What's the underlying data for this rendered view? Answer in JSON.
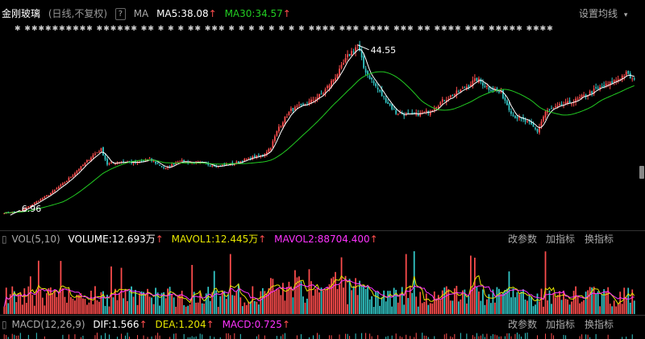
{
  "header": {
    "stock_name": "金刚玻璃",
    "mode": "(日线,不复权)",
    "help": "?",
    "ma_label": "MA",
    "ma5": "MA5:38.08",
    "ma30": "MA30:34.57",
    "settings": "设置均线",
    "settings_caret": "▾"
  },
  "price_panel": {
    "high_label": "44.55",
    "low_label": "6.96",
    "signal_row": "✱ ✱✱✱✱✱✱✱✱✱✱  ✱✱✱✱✱✱ ✱✱ ✱ ✱  ✱ ✱✱ ✱✱✱ ✱ ✱ ✱  ✱  ✱  ✱   ✱   ✱    ✱✱✱✱ ✱✱✱ ✱✱✱✱ ✱✱✱ ✱✱ ✱✱✱✱ ✱✱✱ ✱✱✱✱✱ ✱✱✱✱"
  },
  "volume_panel": {
    "title": "VOL(5,10)",
    "volume": "VOLUME:12.693万",
    "mavol1": "MAVOL1:12.445万",
    "mavol2": "MAVOL2:88704.400",
    "btn_params": "改参数",
    "btn_add": "加指标",
    "btn_switch": "换指标"
  },
  "macd_panel": {
    "title": "MACD(12,26,9)",
    "dif": "DIF:1.566",
    "dea": "DEA:1.204",
    "macd": "MACD:0.725",
    "btn_params": "改参数",
    "btn_add": "加指标",
    "btn_switch": "换指标"
  },
  "colors": {
    "up": "#ff4d4d",
    "down": "#33c9c9",
    "ma5": "#ffffff",
    "ma30": "#22cc22",
    "mavol1": "#e6e600",
    "mavol2": "#ff33ff",
    "dif": "#ffffff",
    "dea": "#e6e600",
    "macd": "#ff33ff"
  },
  "chart_data": {
    "type": "candlestick",
    "anchors": [
      [
        0,
        7.5
      ],
      [
        8,
        7.8
      ],
      [
        14,
        9.4
      ],
      [
        22,
        11.5
      ],
      [
        30,
        14.2
      ],
      [
        38,
        17.6
      ],
      [
        44,
        20.2
      ],
      [
        48,
        21.5
      ],
      [
        51,
        18.2
      ],
      [
        58,
        18.8
      ],
      [
        66,
        18.5
      ],
      [
        72,
        19.3
      ],
      [
        80,
        17.2
      ],
      [
        86,
        18.9
      ],
      [
        96,
        18.5
      ],
      [
        106,
        17.8
      ],
      [
        114,
        18.4
      ],
      [
        122,
        19.6
      ],
      [
        128,
        20.2
      ],
      [
        132,
        22.0
      ],
      [
        136,
        26.5
      ],
      [
        142,
        30.2
      ],
      [
        150,
        31.5
      ],
      [
        158,
        34.0
      ],
      [
        166,
        38.8
      ],
      [
        170,
        42.0
      ],
      [
        175,
        44.55
      ],
      [
        178,
        39.5
      ],
      [
        186,
        34.0
      ],
      [
        194,
        29.5
      ],
      [
        202,
        29.0
      ],
      [
        210,
        29.8
      ],
      [
        218,
        32.5
      ],
      [
        226,
        34.5
      ],
      [
        234,
        37.0
      ],
      [
        240,
        35.0
      ],
      [
        246,
        34.0
      ],
      [
        252,
        29.0
      ],
      [
        260,
        27.2
      ],
      [
        264,
        25.5
      ],
      [
        268,
        29.8
      ],
      [
        276,
        31.2
      ],
      [
        284,
        32.5
      ],
      [
        292,
        34.5
      ],
      [
        300,
        36.0
      ],
      [
        308,
        38.2
      ],
      [
        312,
        36.5
      ]
    ],
    "candles": 313,
    "high": 44.55,
    "low": 6.96,
    "ma_periods": [
      5,
      30
    ],
    "vol_periods": [
      5,
      10
    ],
    "macd_params": [
      12,
      26,
      9
    ]
  }
}
